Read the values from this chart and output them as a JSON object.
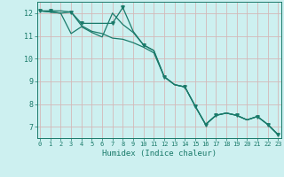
{
  "xlabel": "Humidex (Indice chaleur)",
  "background_color": "#cdf0f0",
  "grid_color": "#d4b8b8",
  "line_color": "#1a7a6a",
  "line1_x": [
    0,
    1,
    2,
    3,
    4,
    5,
    6,
    7,
    8,
    9,
    10,
    11,
    12,
    13,
    14,
    15,
    16,
    17,
    18,
    19,
    20,
    21,
    22,
    23
  ],
  "line1_y": [
    12.1,
    12.05,
    12.0,
    12.05,
    11.45,
    11.2,
    11.1,
    10.9,
    10.85,
    10.7,
    10.5,
    10.25,
    9.2,
    8.85,
    8.75,
    7.9,
    7.1,
    7.5,
    7.6,
    7.5,
    7.3,
    7.45,
    7.1,
    6.65
  ],
  "line2_x": [
    0,
    1,
    2,
    3,
    4,
    5,
    6,
    7,
    8,
    9,
    10,
    11,
    12,
    13,
    14,
    15,
    16,
    17,
    18,
    19,
    20,
    21,
    22,
    23
  ],
  "line2_y": [
    12.1,
    12.05,
    12.0,
    11.1,
    11.4,
    11.15,
    10.95,
    12.0,
    11.5,
    11.15,
    10.6,
    10.35,
    9.2,
    8.85,
    8.75,
    7.9,
    7.1,
    7.5,
    7.6,
    7.5,
    7.3,
    7.45,
    7.1,
    6.65
  ],
  "line3_x": [
    0,
    1,
    2,
    3,
    4,
    5,
    6,
    7,
    8,
    9,
    10,
    11,
    12,
    13,
    14,
    15,
    16,
    17,
    18,
    19,
    20,
    21,
    22,
    23
  ],
  "line3_y": [
    12.1,
    12.1,
    12.1,
    12.05,
    11.55,
    11.55,
    11.55,
    11.55,
    12.25,
    11.2,
    10.6,
    10.35,
    9.2,
    8.85,
    8.75,
    7.9,
    7.1,
    7.5,
    7.6,
    7.5,
    7.3,
    7.45,
    7.1,
    6.65
  ],
  "marker3_x": [
    0,
    1,
    3,
    4,
    7,
    8,
    10,
    12,
    14,
    15,
    16,
    17,
    19,
    21,
    22,
    23
  ],
  "marker3_y": [
    12.1,
    12.1,
    12.05,
    11.55,
    11.55,
    12.25,
    10.6,
    9.2,
    8.75,
    7.9,
    7.1,
    7.5,
    7.5,
    7.45,
    7.1,
    6.65
  ],
  "xlim": [
    -0.3,
    23.3
  ],
  "ylim": [
    6.5,
    12.5
  ],
  "yticks": [
    7,
    8,
    9,
    10,
    11,
    12
  ],
  "xticks": [
    0,
    1,
    2,
    3,
    4,
    5,
    6,
    7,
    8,
    9,
    10,
    11,
    12,
    13,
    14,
    15,
    16,
    17,
    18,
    19,
    20,
    21,
    22,
    23
  ]
}
